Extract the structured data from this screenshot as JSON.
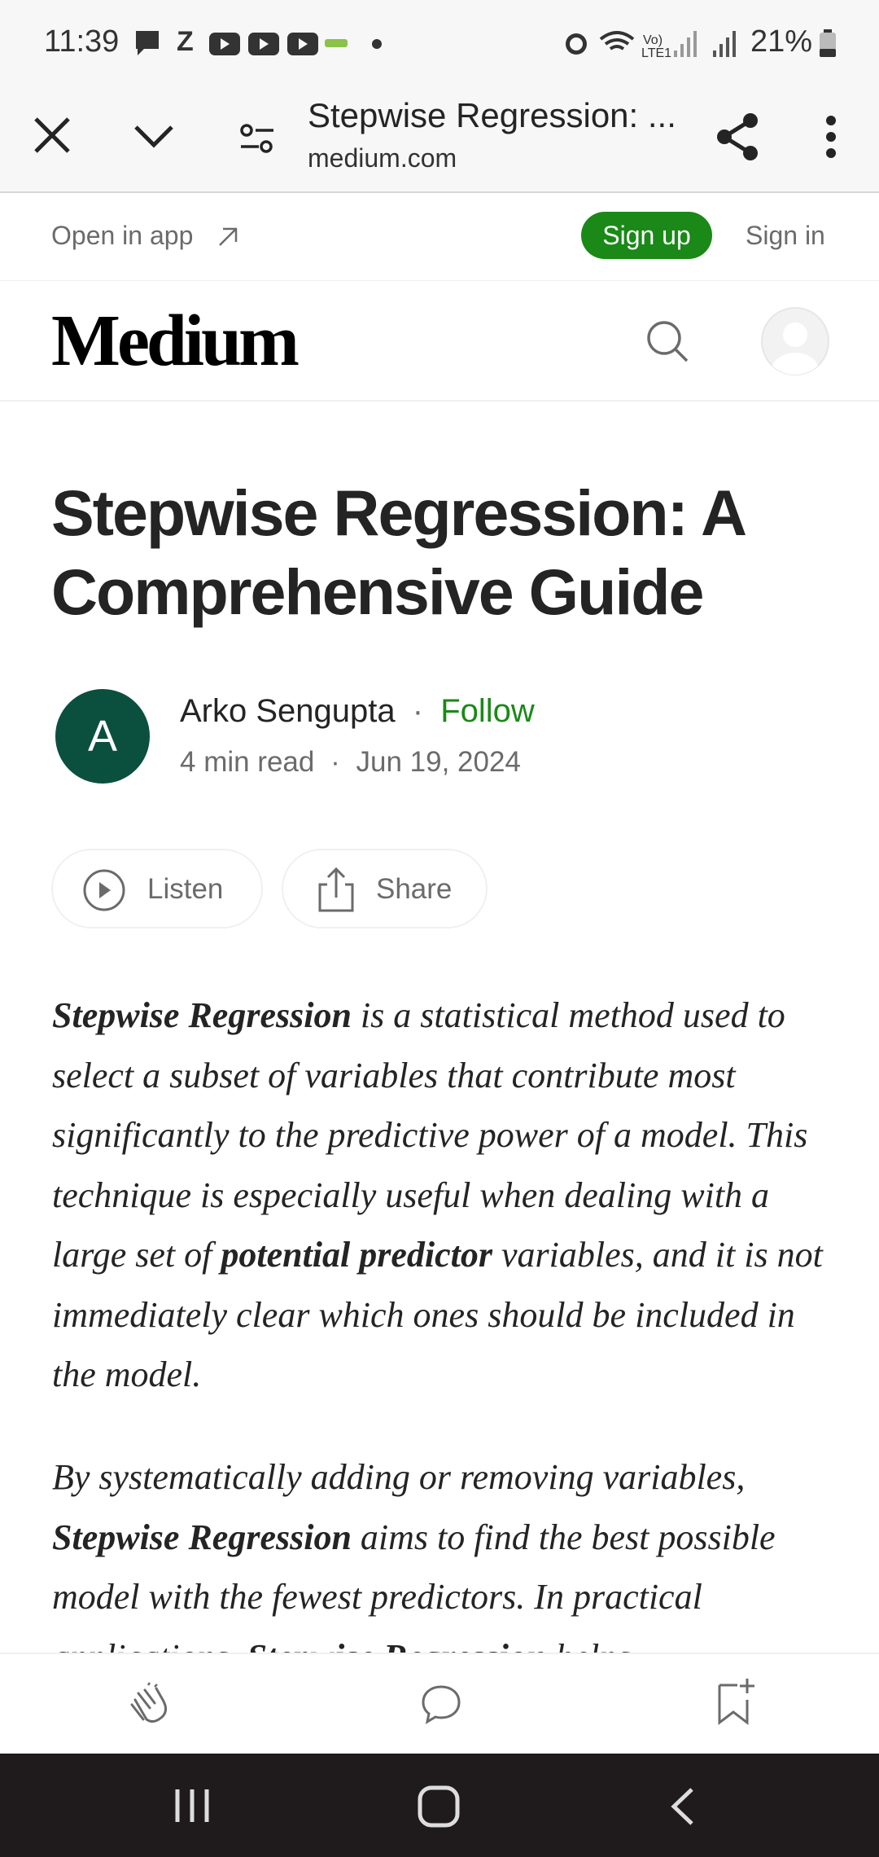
{
  "status_bar": {
    "time": "11:39",
    "battery": "21%"
  },
  "toolbar": {
    "title": "Stepwise Regression: ...",
    "domain": "medium.com"
  },
  "banner": {
    "open_in_app": "Open in app",
    "sign_up": "Sign up",
    "sign_in": "Sign in"
  },
  "header": {
    "logo": "Medium"
  },
  "article": {
    "title": "Stepwise Regression: A Comprehensive Guide",
    "author_initial": "A",
    "author": "Arko Sengupta",
    "separator": "·",
    "follow": "Follow",
    "read_time": "4 min read",
    "date": "Jun 19, 2024",
    "listen": "Listen",
    "share": "Share",
    "paragraphs": [
      {
        "runs": [
          {
            "text": "Stepwise Regression",
            "bold": true
          },
          {
            "text": " is a statistical method used to select a subset of variables that contribute most significantly to the predictive power of a model. This technique is especially useful when dealing with a large set of ",
            "bold": false
          },
          {
            "text": "potential predictor",
            "bold": true
          },
          {
            "text": " variables, and it is not immediately clear which ones should be included in the model.",
            "bold": false
          }
        ]
      },
      {
        "runs": [
          {
            "text": "By systematically adding or removing variables, ",
            "bold": false
          },
          {
            "text": "Stepwise Regression",
            "bold": true
          },
          {
            "text": " aims to find the best possible model with the fewest predictors. In practical applications, ",
            "bold": false
          },
          {
            "text": "Stepwise Regression",
            "bold": true
          },
          {
            "text": " helps",
            "bold": false
          }
        ]
      }
    ]
  }
}
